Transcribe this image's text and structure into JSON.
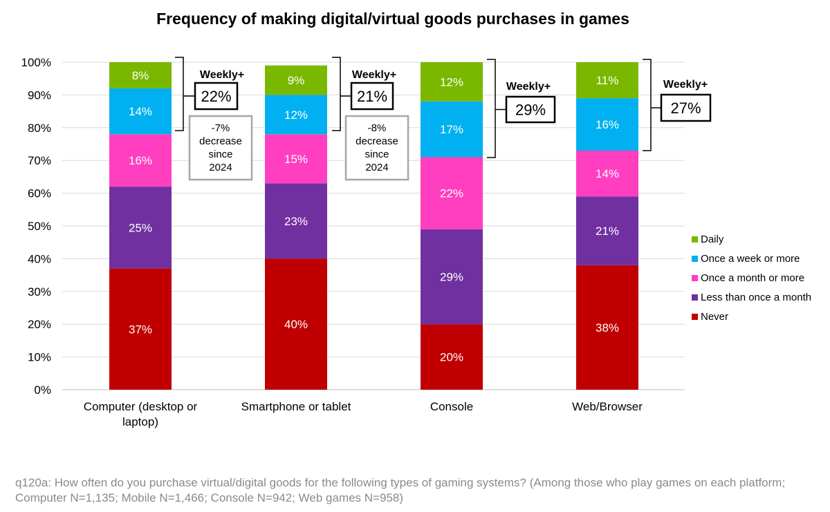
{
  "chart_data": {
    "type": "bar",
    "stacked": true,
    "title": "Frequency of making digital/virtual goods purchases in games",
    "ylim": [
      0,
      100
    ],
    "yticks": [
      "0%",
      "10%",
      "20%",
      "30%",
      "40%",
      "50%",
      "60%",
      "70%",
      "80%",
      "90%",
      "100%"
    ],
    "categories": [
      [
        "Computer (desktop or",
        "laptop)"
      ],
      [
        "Smartphone or tablet"
      ],
      [
        "Console"
      ],
      [
        "Web/Browser"
      ]
    ],
    "series": [
      {
        "name": "Never",
        "color": "#c00000",
        "values": [
          37,
          40,
          20,
          38
        ],
        "labels": [
          "37%",
          "40%",
          "20%",
          "38%"
        ]
      },
      {
        "name": "Less than once a month",
        "color": "#7030a0",
        "values": [
          25,
          23,
          29,
          21
        ],
        "labels": [
          "25%",
          "23%",
          "29%",
          "21%"
        ]
      },
      {
        "name": "Once a month or more",
        "color": "#ff3fc0",
        "values": [
          16,
          15,
          22,
          14
        ],
        "labels": [
          "16%",
          "15%",
          "22%",
          "14%"
        ]
      },
      {
        "name": "Once a week or more",
        "color": "#00b0f0",
        "values": [
          14,
          12,
          17,
          16
        ],
        "labels": [
          "14%",
          "12%",
          "17%",
          "16%"
        ]
      },
      {
        "name": "Daily",
        "color": "#7ab800",
        "values": [
          8,
          9,
          12,
          11
        ],
        "labels": [
          "8%",
          "9%",
          "12%",
          "11%"
        ]
      }
    ],
    "legend_order": [
      "Daily",
      "Once a week or more",
      "Once a month or more",
      "Less than once a month",
      "Never"
    ],
    "legend_position": "right",
    "annotations": [
      {
        "heading": "Weekly+",
        "value": "22%",
        "change": [
          "-7%",
          "decrease",
          "since",
          "2024"
        ]
      },
      {
        "heading": "Weekly+",
        "value": "21%",
        "change": [
          "-8%",
          "decrease",
          "since",
          "2024"
        ]
      },
      {
        "heading": "Weekly+",
        "value": "29%"
      },
      {
        "heading": "Weekly+",
        "value": "27%"
      }
    ]
  },
  "footnote": "q120a: How often do you purchase virtual/digital goods for the following types of gaming systems? (Among those who play games on each platform; Computer N=1,135; Mobile N=1,466; Console N=942; Web games N=958)"
}
